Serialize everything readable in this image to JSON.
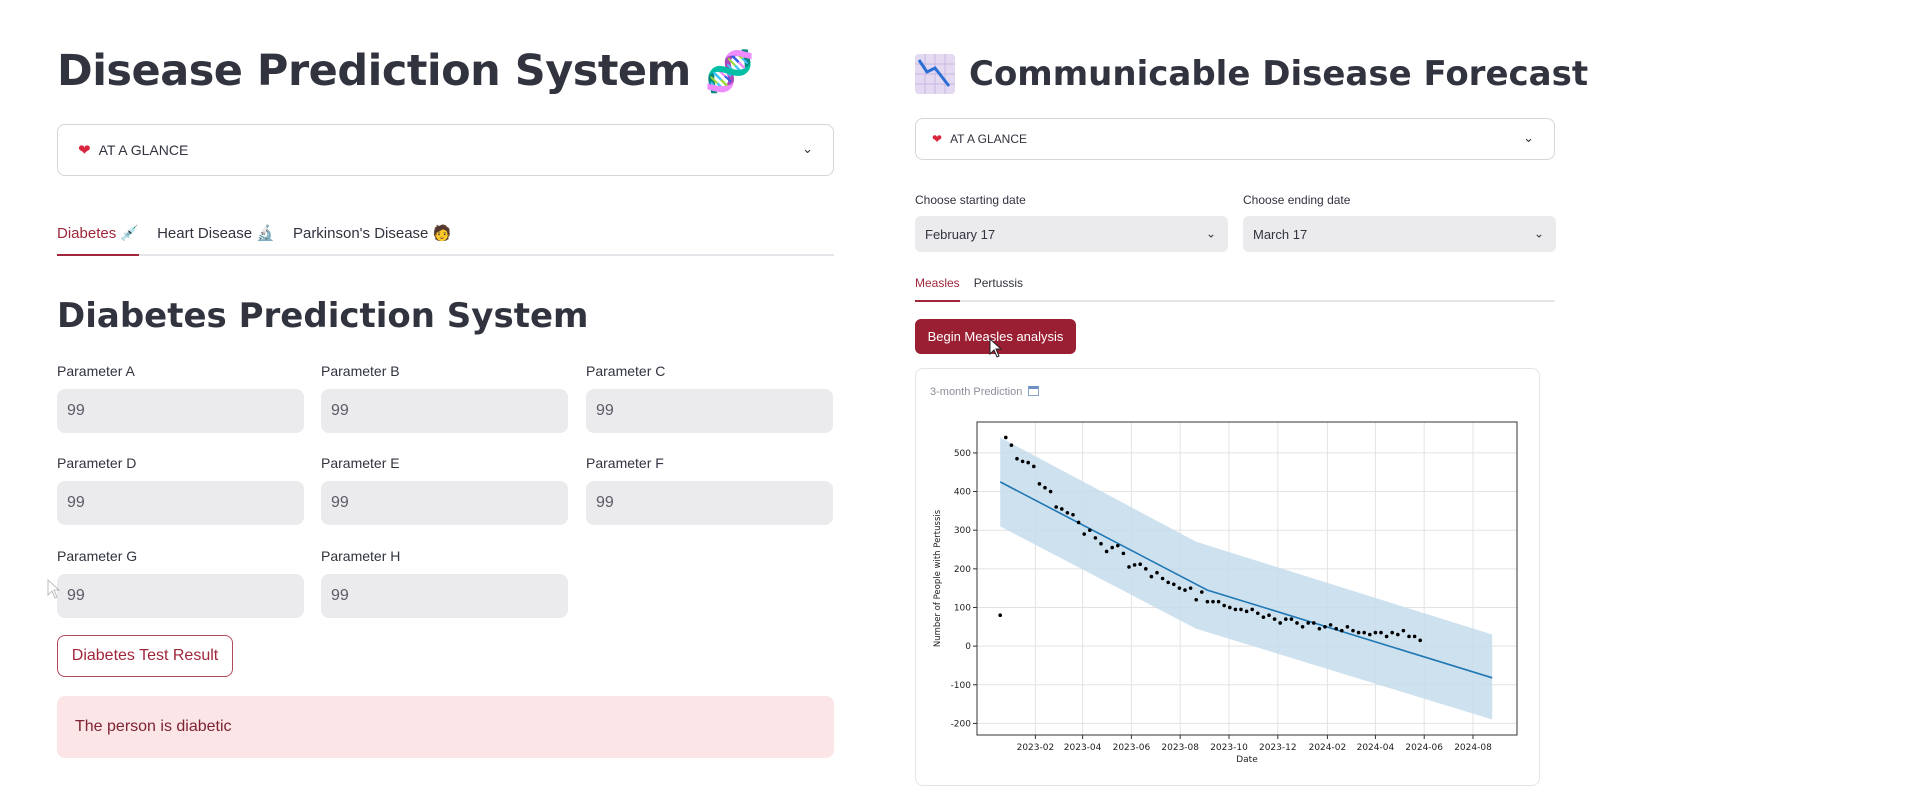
{
  "left_app": {
    "title": "Disease Prediction System",
    "title_emoji": "🧬",
    "menu_select": {
      "icon": "heart-icon",
      "value": "AT A GLANCE"
    },
    "tabs": [
      {
        "label": "Diabetes",
        "icon": "syringe-icon",
        "emoji": "💉",
        "active": true
      },
      {
        "label": "Heart Disease",
        "icon": "microscope-icon",
        "emoji": "🔬",
        "active": false
      },
      {
        "label": "Parkinson's Disease",
        "icon": "person-icon",
        "emoji": "🧑",
        "active": false
      }
    ],
    "section_title": "Diabetes Prediction System",
    "parameters": [
      {
        "label": "Parameter A",
        "value": "99"
      },
      {
        "label": "Parameter B",
        "value": "99"
      },
      {
        "label": "Parameter C",
        "value": "99"
      },
      {
        "label": "Parameter D",
        "value": "99"
      },
      {
        "label": "Parameter E",
        "value": "99"
      },
      {
        "label": "Parameter F",
        "value": "99"
      },
      {
        "label": "Parameter G",
        "value": "99"
      },
      {
        "label": "Parameter H",
        "value": "99"
      }
    ],
    "result_button": "Diabetes Test Result",
    "result_message": "The person is diabetic"
  },
  "right_app": {
    "title": "Communicable Disease Forecast",
    "title_icon": "chart-decreasing-icon",
    "menu_select": {
      "icon": "heart-icon",
      "value": "AT A GLANCE"
    },
    "start_date": {
      "label": "Choose starting date",
      "value": "February 17"
    },
    "end_date": {
      "label": "Choose ending date",
      "value": "March 17"
    },
    "tabs": [
      {
        "label": "Measles",
        "active": true
      },
      {
        "label": "Pertussis",
        "active": false
      }
    ],
    "analysis_button": "Begin Measles analysis",
    "card_title": "3-month Prediction",
    "card_icon": "calendar-icon"
  },
  "colors": {
    "accent": "#a0273a",
    "button_fill": "#9b1f33",
    "alert_bg": "#fbe5e7",
    "forecast_line": "#1f77b4",
    "forecast_band": "#c5dcec"
  },
  "chart_data": {
    "type": "line",
    "xlabel": "Date",
    "ylabel": "Number of People with Pertussis",
    "ylim": [
      -230,
      580
    ],
    "yticks": [
      500,
      400,
      300,
      200,
      100,
      0,
      -100,
      -200
    ],
    "xticks": [
      "2023-02",
      "2023-04",
      "2023-06",
      "2023-08",
      "2023-10",
      "2023-12",
      "2024-02",
      "2024-04",
      "2024-06",
      "2024-08"
    ],
    "grid": true,
    "observed_points": [
      {
        "x": "2022-12-19",
        "y": 80
      },
      {
        "x": "2022-12-26",
        "y": 540
      },
      {
        "x": "2023-01-02",
        "y": 520
      },
      {
        "x": "2023-01-09",
        "y": 485
      },
      {
        "x": "2023-01-16",
        "y": 478
      },
      {
        "x": "2023-01-23",
        "y": 475
      },
      {
        "x": "2023-01-30",
        "y": 465
      },
      {
        "x": "2023-02-06",
        "y": 420
      },
      {
        "x": "2023-02-13",
        "y": 410
      },
      {
        "x": "2023-02-20",
        "y": 400
      },
      {
        "x": "2023-02-27",
        "y": 360
      },
      {
        "x": "2023-03-06",
        "y": 355
      },
      {
        "x": "2023-03-13",
        "y": 345
      },
      {
        "x": "2023-03-20",
        "y": 340
      },
      {
        "x": "2023-03-27",
        "y": 320
      },
      {
        "x": "2023-04-03",
        "y": 290
      },
      {
        "x": "2023-04-10",
        "y": 300
      },
      {
        "x": "2023-04-17",
        "y": 280
      },
      {
        "x": "2023-04-24",
        "y": 265
      },
      {
        "x": "2023-05-01",
        "y": 245
      },
      {
        "x": "2023-05-08",
        "y": 255
      },
      {
        "x": "2023-05-15",
        "y": 260
      },
      {
        "x": "2023-05-22",
        "y": 240
      },
      {
        "x": "2023-05-29",
        "y": 205
      },
      {
        "x": "2023-06-05",
        "y": 210
      },
      {
        "x": "2023-06-12",
        "y": 212
      },
      {
        "x": "2023-06-19",
        "y": 200
      },
      {
        "x": "2023-06-26",
        "y": 180
      },
      {
        "x": "2023-07-03",
        "y": 190
      },
      {
        "x": "2023-07-10",
        "y": 175
      },
      {
        "x": "2023-07-17",
        "y": 165
      },
      {
        "x": "2023-07-24",
        "y": 160
      },
      {
        "x": "2023-07-31",
        "y": 150
      },
      {
        "x": "2023-08-07",
        "y": 145
      },
      {
        "x": "2023-08-14",
        "y": 150
      },
      {
        "x": "2023-08-21",
        "y": 120
      },
      {
        "x": "2023-08-28",
        "y": 140
      },
      {
        "x": "2023-09-04",
        "y": 115
      },
      {
        "x": "2023-09-11",
        "y": 115
      },
      {
        "x": "2023-09-18",
        "y": 115
      },
      {
        "x": "2023-09-25",
        "y": 105
      },
      {
        "x": "2023-10-02",
        "y": 100
      },
      {
        "x": "2023-10-09",
        "y": 95
      },
      {
        "x": "2023-10-16",
        "y": 95
      },
      {
        "x": "2023-10-23",
        "y": 90
      },
      {
        "x": "2023-10-30",
        "y": 95
      },
      {
        "x": "2023-11-06",
        "y": 85
      },
      {
        "x": "2023-11-13",
        "y": 75
      },
      {
        "x": "2023-11-20",
        "y": 80
      },
      {
        "x": "2023-11-27",
        "y": 70
      },
      {
        "x": "2023-12-04",
        "y": 60
      },
      {
        "x": "2023-12-11",
        "y": 70
      },
      {
        "x": "2023-12-18",
        "y": 70
      },
      {
        "x": "2023-12-25",
        "y": 60
      },
      {
        "x": "2024-01-01",
        "y": 50
      },
      {
        "x": "2024-01-08",
        "y": 60
      },
      {
        "x": "2024-01-15",
        "y": 60
      },
      {
        "x": "2024-01-22",
        "y": 45
      },
      {
        "x": "2024-01-29",
        "y": 50
      },
      {
        "x": "2024-02-05",
        "y": 55
      },
      {
        "x": "2024-02-12",
        "y": 45
      },
      {
        "x": "2024-02-19",
        "y": 40
      },
      {
        "x": "2024-02-26",
        "y": 50
      },
      {
        "x": "2024-03-04",
        "y": 40
      },
      {
        "x": "2024-03-11",
        "y": 35
      },
      {
        "x": "2024-03-18",
        "y": 35
      },
      {
        "x": "2024-03-25",
        "y": 30
      },
      {
        "x": "2024-04-01",
        "y": 35
      },
      {
        "x": "2024-04-08",
        "y": 35
      },
      {
        "x": "2024-04-15",
        "y": 25
      },
      {
        "x": "2024-04-22",
        "y": 35
      },
      {
        "x": "2024-04-29",
        "y": 30
      },
      {
        "x": "2024-05-06",
        "y": 40
      },
      {
        "x": "2024-05-13",
        "y": 25
      },
      {
        "x": "2024-05-20",
        "y": 25
      },
      {
        "x": "2024-05-27",
        "y": 15
      }
    ],
    "forecast_line": [
      {
        "x": "2022-12-19",
        "y": 425
      },
      {
        "x": "2023-08-21",
        "y": 160
      },
      {
        "x": "2023-09-04",
        "y": 145
      },
      {
        "x": "2024-08-25",
        "y": -82
      }
    ],
    "uncertainty_band": [
      {
        "x": "2022-12-19",
        "lower": 310,
        "upper": 540
      },
      {
        "x": "2023-08-21",
        "lower": 45,
        "upper": 270
      },
      {
        "x": "2024-08-25",
        "lower": -190,
        "upper": 30
      }
    ]
  }
}
